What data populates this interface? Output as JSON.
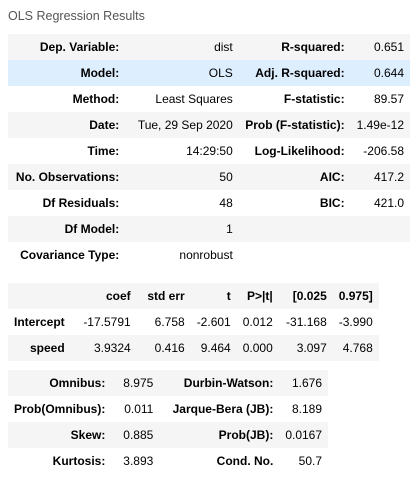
{
  "caption": "OLS Regression Results",
  "summary": [
    {
      "l1": "Dep. Variable:",
      "v1": "dist",
      "l2": "R-squared:",
      "v2": "0.651"
    },
    {
      "l1": "Model:",
      "v1": "OLS",
      "l2": "Adj. R-squared:",
      "v2": "0.644"
    },
    {
      "l1": "Method:",
      "v1": "Least Squares",
      "l2": "F-statistic:",
      "v2": "89.57"
    },
    {
      "l1": "Date:",
      "v1": "Tue, 29 Sep 2020",
      "l2": "Prob (F-statistic):",
      "v2": "1.49e-12"
    },
    {
      "l1": "Time:",
      "v1": "14:29:50",
      "l2": "Log-Likelihood:",
      "v2": "-206.58"
    },
    {
      "l1": "No. Observations:",
      "v1": "50",
      "l2": "AIC:",
      "v2": "417.2"
    },
    {
      "l1": "Df Residuals:",
      "v1": "48",
      "l2": "BIC:",
      "v2": "421.0"
    },
    {
      "l1": "Df Model:",
      "v1": "1",
      "l2": "",
      "v2": ""
    },
    {
      "l1": "Covariance Type:",
      "v1": "nonrobust",
      "l2": "",
      "v2": ""
    }
  ],
  "coef": {
    "headers": [
      "",
      "coef",
      "std err",
      "t",
      "P>|t|",
      "[0.025",
      "0.975]"
    ],
    "rows": [
      [
        "Intercept",
        "-17.5791",
        "6.758",
        "-2.601",
        "0.012",
        "-31.168",
        "-3.990"
      ],
      [
        "speed",
        "3.9324",
        "0.416",
        "9.464",
        "0.000",
        "3.097",
        "4.768"
      ]
    ]
  },
  "diagnostics": [
    {
      "l1": "Omnibus:",
      "v1": "8.975",
      "l2": "Durbin-Watson:",
      "v2": "1.676"
    },
    {
      "l1": "Prob(Omnibus):",
      "v1": "0.011",
      "l2": "Jarque-Bera (JB):",
      "v2": "8.189"
    },
    {
      "l1": "Skew:",
      "v1": "0.885",
      "l2": "Prob(JB):",
      "v2": "0.0167"
    },
    {
      "l1": "Kurtosis:",
      "v1": "3.893",
      "l2": "Cond. No.",
      "v2": "50.7"
    }
  ]
}
